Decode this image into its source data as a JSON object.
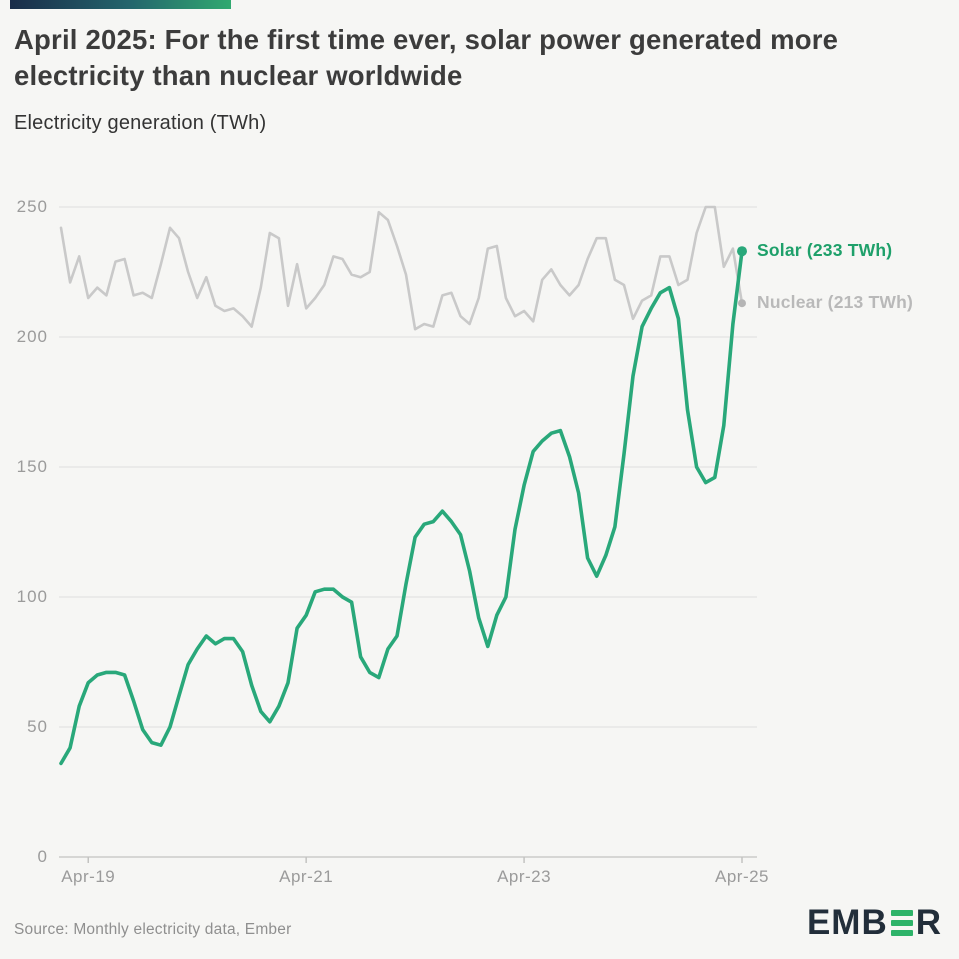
{
  "header": {
    "title": "April 2025: For the first time ever, solar power generated more electricity than nuclear worldwide",
    "subtitle": "Electricity generation (TWh)"
  },
  "chart_data": {
    "type": "line",
    "title": "April 2025: For the first time ever, solar power generated more electricity than nuclear worldwide",
    "ylabel": "Electricity generation (TWh)",
    "xlabel": "",
    "x_unit": "month",
    "x_range": [
      "Jan-19",
      "Apr-25"
    ],
    "ylim": [
      0,
      250
    ],
    "grid": "horizontal",
    "y_axis": {
      "ticks": [
        0,
        50,
        100,
        150,
        200,
        250
      ]
    },
    "x_axis": {
      "ticks": [
        {
          "label": "Apr-19",
          "index": 3
        },
        {
          "label": "Apr-21",
          "index": 27
        },
        {
          "label": "Apr-23",
          "index": 51
        },
        {
          "label": "Apr-25",
          "index": 75
        }
      ]
    },
    "series": [
      {
        "name": "Nuclear",
        "color": "#c9c9c9",
        "dot_color": "#b5b5b5",
        "width": 2.6,
        "dot_r": 4,
        "values": [
          242,
          221,
          231,
          215,
          219,
          216,
          229,
          230,
          216,
          217,
          215,
          228,
          242,
          238,
          225,
          215,
          223,
          212,
          210,
          211,
          208,
          204,
          219,
          240,
          238,
          212,
          228,
          211,
          215,
          220,
          231,
          230,
          224,
          223,
          225,
          248,
          245,
          235,
          224,
          203,
          205,
          204,
          216,
          217,
          208,
          205,
          215,
          234,
          235,
          215,
          208,
          210,
          206,
          222,
          226,
          220,
          216,
          220,
          230,
          238,
          238,
          222,
          220,
          207,
          214,
          216,
          231,
          231,
          220,
          222,
          240,
          250,
          250,
          227,
          234,
          213
        ]
      },
      {
        "name": "Solar",
        "color": "#29a87a",
        "dot_color": "#29a87a",
        "width": 3.6,
        "dot_r": 5,
        "values": [
          36,
          42,
          58,
          67,
          70,
          71,
          71,
          70,
          60,
          49,
          44,
          43,
          50,
          62,
          74,
          80,
          85,
          82,
          84,
          84,
          79,
          66,
          56,
          52,
          58,
          67,
          88,
          93,
          102,
          103,
          103,
          100,
          98,
          77,
          71,
          69,
          80,
          85,
          105,
          123,
          128,
          129,
          133,
          129,
          124,
          110,
          92,
          81,
          93,
          100,
          126,
          143,
          156,
          160,
          163,
          164,
          154,
          140,
          115,
          108,
          116,
          127,
          155,
          185,
          204,
          211,
          217,
          219,
          207,
          172,
          150,
          144,
          146,
          166,
          205,
          233
        ]
      }
    ],
    "legend": [
      {
        "label": "Solar (233 TWh)",
        "color": "#1ea06a",
        "series_index": 1
      },
      {
        "label": "Nuclear (213 TWh)",
        "color": "#b9b9b9",
        "series_index": 0
      }
    ],
    "legend_position": "right-of-line-ends",
    "end_values": {
      "solar": "233 TWh",
      "nuclear": "213 TWh"
    }
  },
  "footer": {
    "source": "Source: Monthly electricity data, Ember",
    "logo_prefix": "EMB",
    "logo_suffix": "R",
    "logo_name": "EMBER"
  }
}
